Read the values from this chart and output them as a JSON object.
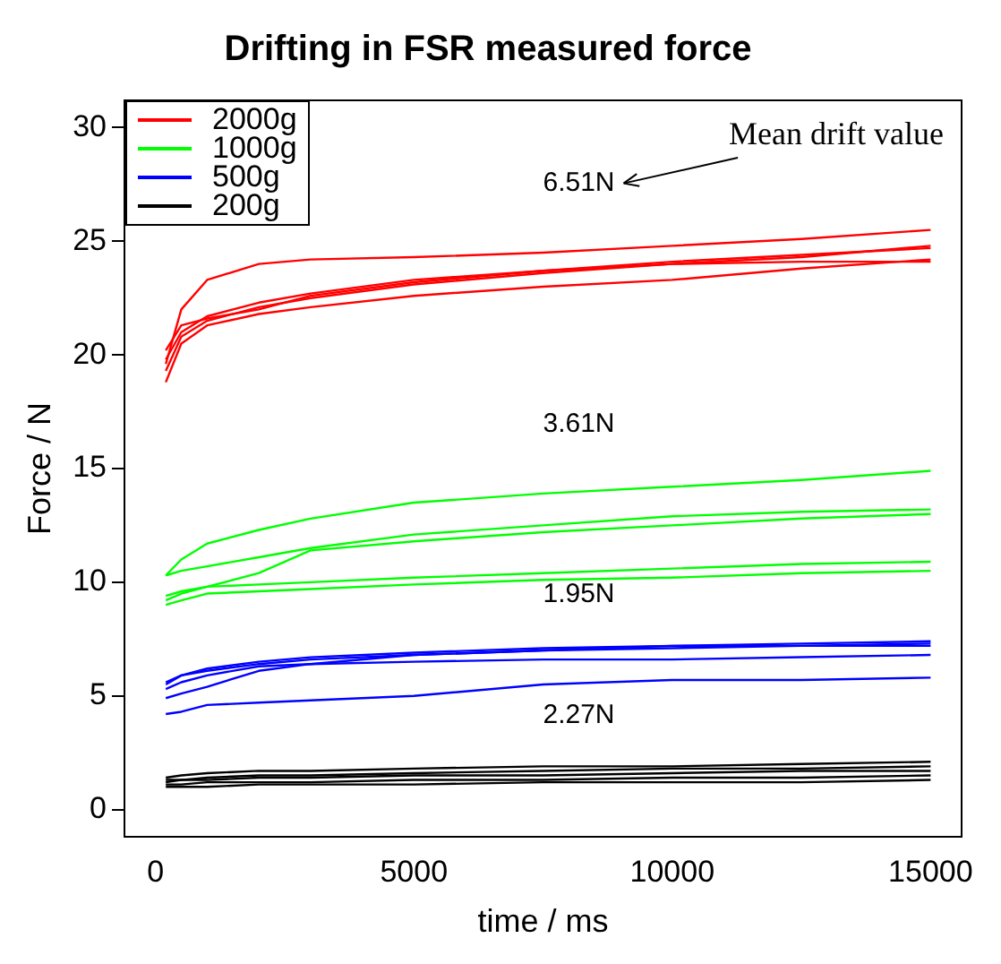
{
  "chart_data": {
    "type": "line",
    "title": "Drifting in FSR measured force",
    "xlabel": "time / ms",
    "ylabel": "Force / N",
    "x": [
      200,
      500,
      1000,
      2000,
      3000,
      5000,
      7500,
      10000,
      12500,
      15000
    ],
    "xlim": [
      -600,
      15600
    ],
    "xticks": [
      0,
      5000,
      10000,
      15000
    ],
    "ylim": [
      -1.2,
      31.2
    ],
    "yticks": [
      0,
      5,
      10,
      15,
      20,
      25,
      30
    ],
    "grid": false,
    "legend": "top left",
    "marker": "none",
    "annotations": [
      "Mean drift value",
      "6.51N",
      "3.61N",
      "1.95N",
      "2.27N"
    ],
    "series": [
      {
        "name": "2000g",
        "color": "#ff0000",
        "values": [
          19.6,
          22.0,
          23.3,
          24.0,
          24.2,
          24.3,
          24.5,
          24.8,
          25.1,
          25.5
        ]
      },
      {
        "color": "#ff0000",
        "values": [
          18.8,
          20.5,
          21.3,
          21.8,
          22.1,
          22.6,
          23.0,
          23.3,
          23.8,
          24.2
        ]
      },
      {
        "color": "#ff0000",
        "values": [
          19.3,
          20.8,
          21.5,
          22.1,
          22.5,
          23.1,
          23.6,
          24.0,
          24.3,
          24.8
        ]
      },
      {
        "color": "#ff0000",
        "values": [
          19.8,
          21.0,
          21.7,
          22.3,
          22.7,
          23.3,
          23.7,
          24.1,
          24.4,
          24.7
        ]
      },
      {
        "color": "#ff0000",
        "values": [
          20.2,
          21.3,
          21.6,
          22.0,
          22.6,
          23.2,
          23.7,
          24.0,
          24.1,
          24.1
        ]
      },
      {
        "name": "1000g",
        "color": "#00ff00",
        "values": [
          10.3,
          11.0,
          11.7,
          12.3,
          12.8,
          13.5,
          13.9,
          14.2,
          14.5,
          14.9
        ]
      },
      {
        "color": "#00ff00",
        "values": [
          10.3,
          10.5,
          10.7,
          11.1,
          11.5,
          12.1,
          12.5,
          12.9,
          13.1,
          13.2
        ]
      },
      {
        "color": "#00ff00",
        "values": [
          9.2,
          9.5,
          9.8,
          10.4,
          11.4,
          11.8,
          12.2,
          12.5,
          12.8,
          13.0
        ]
      },
      {
        "color": "#00ff00",
        "values": [
          9.4,
          9.6,
          9.8,
          9.9,
          10.0,
          10.2,
          10.4,
          10.6,
          10.8,
          10.9
        ]
      },
      {
        "color": "#00ff00",
        "values": [
          9.0,
          9.2,
          9.5,
          9.6,
          9.7,
          9.9,
          10.1,
          10.2,
          10.4,
          10.5
        ]
      },
      {
        "name": "500g",
        "color": "#0000ff",
        "values": [
          5.5,
          5.9,
          6.2,
          6.5,
          6.7,
          6.9,
          7.1,
          7.2,
          7.3,
          7.4
        ]
      },
      {
        "color": "#0000ff",
        "values": [
          5.6,
          5.9,
          6.1,
          6.4,
          6.6,
          6.8,
          7.0,
          7.2,
          7.2,
          7.2
        ]
      },
      {
        "color": "#0000ff",
        "values": [
          5.3,
          5.6,
          5.9,
          6.3,
          6.4,
          6.5,
          6.6,
          6.6,
          6.7,
          6.8
        ]
      },
      {
        "color": "#0000ff",
        "values": [
          4.9,
          5.1,
          5.4,
          6.1,
          6.4,
          6.8,
          7.0,
          7.1,
          7.2,
          7.3
        ]
      },
      {
        "color": "#0000ff",
        "values": [
          4.2,
          4.3,
          4.6,
          4.7,
          4.8,
          5.0,
          5.5,
          5.7,
          5.7,
          5.8
        ]
      },
      {
        "name": "200g",
        "color": "#000000",
        "values": [
          1.4,
          1.5,
          1.6,
          1.7,
          1.7,
          1.8,
          1.9,
          1.9,
          2.0,
          2.1
        ]
      },
      {
        "color": "#000000",
        "values": [
          1.3,
          1.3,
          1.4,
          1.5,
          1.5,
          1.6,
          1.7,
          1.8,
          1.8,
          1.9
        ]
      },
      {
        "color": "#000000",
        "values": [
          1.2,
          1.3,
          1.3,
          1.4,
          1.4,
          1.5,
          1.5,
          1.6,
          1.7,
          1.7
        ]
      },
      {
        "color": "#000000",
        "values": [
          1.1,
          1.1,
          1.2,
          1.2,
          1.2,
          1.3,
          1.3,
          1.4,
          1.4,
          1.5
        ]
      },
      {
        "color": "#000000",
        "values": [
          1.0,
          1.0,
          1.0,
          1.1,
          1.1,
          1.1,
          1.2,
          1.2,
          1.2,
          1.3
        ]
      }
    ]
  }
}
